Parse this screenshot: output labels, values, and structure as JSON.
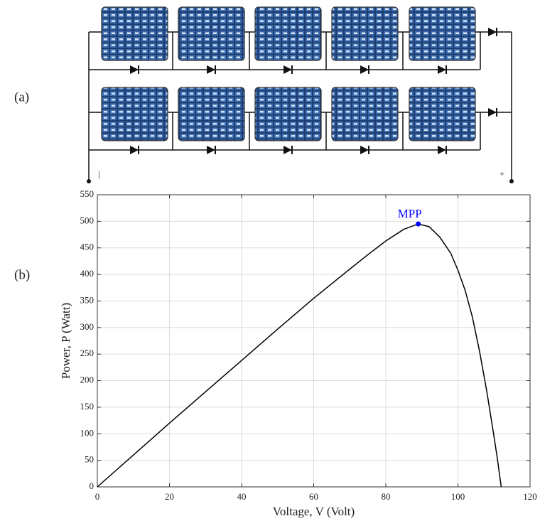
{
  "figure_labels": {
    "a": "(a)",
    "b": "(b)",
    "minus": "|",
    "plus": "+"
  },
  "chart_data": {
    "type": "line",
    "xlabel": "Voltage, V (Volt)",
    "ylabel": "Power, P (Watt)",
    "x": [
      0,
      10,
      20,
      30,
      40,
      50,
      60,
      70,
      75,
      80,
      85,
      89,
      92,
      95,
      98,
      100,
      102,
      104,
      106,
      108,
      110,
      111,
      112
    ],
    "values": [
      0,
      60,
      120,
      179,
      238,
      297,
      355,
      410,
      437,
      463,
      485,
      495,
      490,
      470,
      440,
      408,
      370,
      320,
      255,
      180,
      95,
      50,
      0
    ],
    "color": "#000000",
    "mpp": {
      "label": "MPP",
      "x": 89,
      "y": 495,
      "color": "#0000ff"
    },
    "xlim": [
      0,
      120
    ],
    "xticks": [
      0,
      20,
      40,
      60,
      80,
      100,
      120
    ],
    "ylim": [
      0,
      550
    ],
    "yticks": [
      0,
      50,
      100,
      150,
      200,
      250,
      300,
      350,
      400,
      450,
      500,
      550
    ],
    "grid": true
  }
}
